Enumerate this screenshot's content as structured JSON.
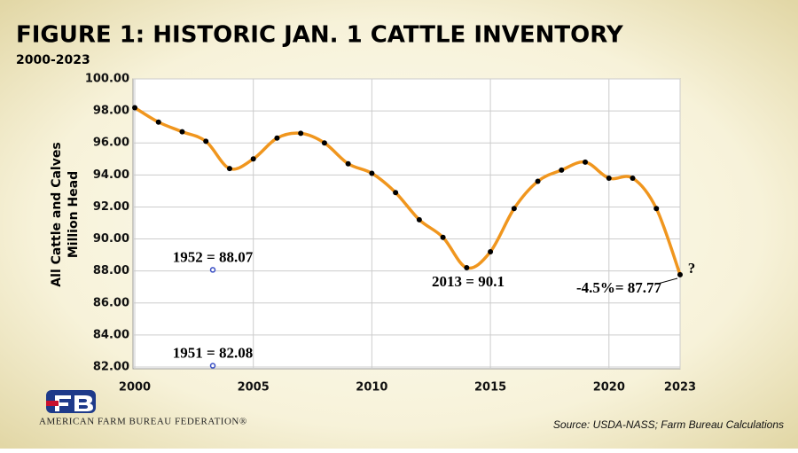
{
  "chart_data": {
    "type": "line",
    "title": "FIGURE 1: HISTORIC JAN. 1 CATTLE INVENTORY",
    "subtitle": "2000-2023",
    "y_label": [
      "All Cattle and Calves",
      "Million Head"
    ],
    "x": [
      2000,
      2001,
      2002,
      2003,
      2004,
      2005,
      2006,
      2007,
      2008,
      2009,
      2010,
      2011,
      2012,
      2013,
      2014,
      2015,
      2016,
      2017,
      2018,
      2019,
      2020,
      2021,
      2022,
      2023
    ],
    "series": [
      {
        "name": "Cattle inventory",
        "color": "#f0961e",
        "values": [
          98.2,
          97.3,
          96.7,
          96.1,
          94.4,
          95.0,
          96.3,
          96.6,
          96.0,
          94.7,
          94.1,
          92.9,
          91.2,
          90.1,
          88.2,
          89.2,
          91.9,
          93.6,
          94.3,
          94.8,
          93.8,
          93.8,
          91.9,
          87.77
        ]
      }
    ],
    "xlim": [
      2000,
      2023
    ],
    "xticks": [
      2000,
      2005,
      2010,
      2015,
      2020,
      2023
    ],
    "ylim": [
      82,
      100
    ],
    "yticks": [
      {
        "value": 82,
        "label": "82.00"
      },
      {
        "value": 84,
        "label": "84.00"
      },
      {
        "value": 86,
        "label": "86.00"
      },
      {
        "value": 88,
        "label": "88.00"
      },
      {
        "value": 90,
        "label": "90.00"
      },
      {
        "value": 92,
        "label": "92.00"
      },
      {
        "value": 94,
        "label": "94.00"
      },
      {
        "value": 96,
        "label": "96.00"
      },
      {
        "value": 98,
        "label": "98.00"
      },
      {
        "value": 100,
        "label": "100.00"
      }
    ],
    "grid": true,
    "reference_points": [
      {
        "text": "1952 = 88.07",
        "value": 88.07,
        "color": "#3a4fc4"
      },
      {
        "text": "1951 = 82.08",
        "value": 82.08,
        "color": "#3a4fc4"
      }
    ],
    "annotations": [
      "2013 = 90.1",
      "-4.5%= 87.77",
      "?"
    ],
    "source": "Source: USDA-NASS; Farm Bureau Calculations",
    "logo_text": "AMERICAN FARM BUREAU FEDERATION®"
  }
}
